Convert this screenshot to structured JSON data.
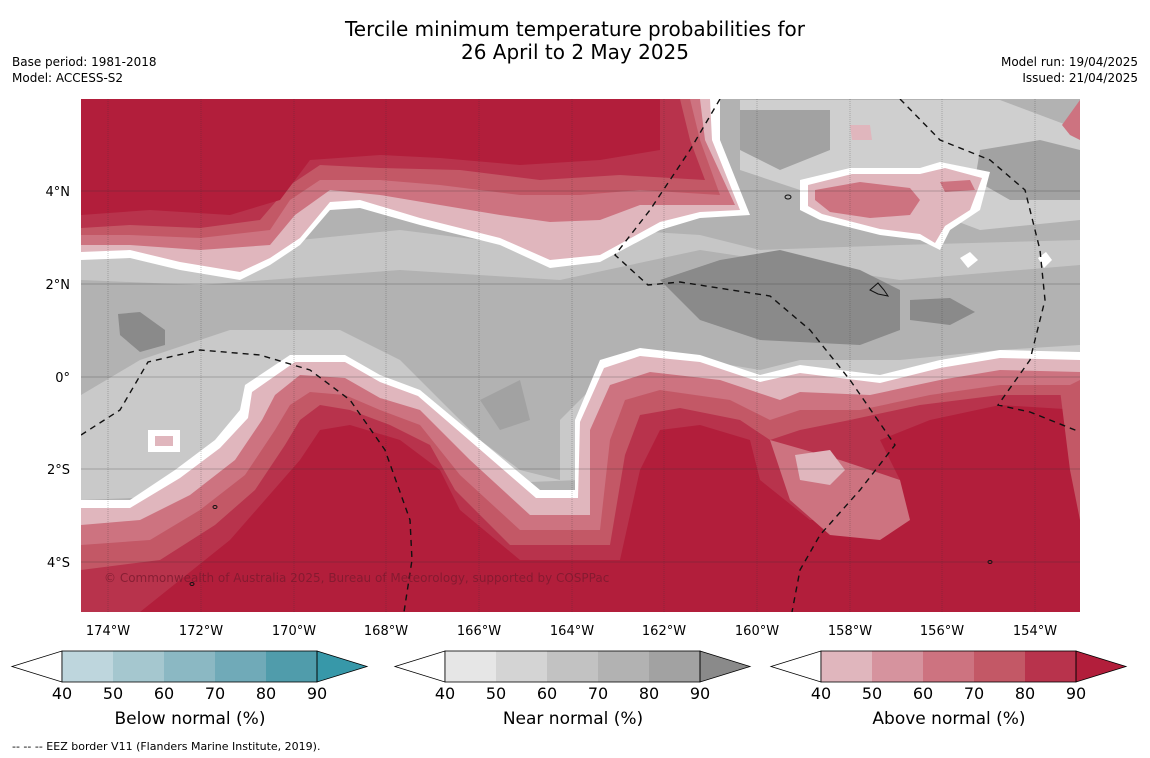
{
  "title_line1": "Tercile minimum temperature probabilities for",
  "title_line2": "26 April to 2 May 2025",
  "base_period": "Base period: 1981-2018",
  "model": "Model: ACCESS-S2",
  "model_run": "Model run: 19/04/2025",
  "issued": "Issued: 21/04/2025",
  "credit": "© Commonwealth of Australia 2025, Bureau of Meteorology, supported by COSPPac",
  "lat_labels": [
    "4°N",
    "2°N",
    "0°",
    "2°S",
    "4°S"
  ],
  "lon_labels": [
    "174°W",
    "172°W",
    "170°W",
    "168°W",
    "166°W",
    "164°W",
    "162°W",
    "160°W",
    "158°W",
    "156°W",
    "154°W"
  ],
  "colorbars": [
    {
      "title": "Below normal (%)",
      "ticks": [
        "40",
        "50",
        "60",
        "70",
        "80",
        "90"
      ],
      "colors": [
        "#bed6dd",
        "#a5c7cf",
        "#8bb8c3",
        "#70aab8",
        "#509cab",
        "#3798a9"
      ]
    },
    {
      "title": "Near normal (%)",
      "ticks": [
        "40",
        "50",
        "60",
        "70",
        "80",
        "90"
      ],
      "colors": [
        "#e6e6e6",
        "#d4d4d4",
        "#c2c2c2",
        "#b2b2b2",
        "#a2a2a2",
        "#8a8a8a"
      ]
    },
    {
      "title": "Above normal (%)",
      "ticks": [
        "40",
        "50",
        "60",
        "70",
        "80",
        "90"
      ],
      "colors": [
        "#e0b6bd",
        "#d6939e",
        "#cd7380",
        "#c35866",
        "#b8334c",
        "#b21e3b"
      ]
    }
  ],
  "footer": "--  --  -- EEZ border V11 (Flanders Marine Institute, 2019)."
}
